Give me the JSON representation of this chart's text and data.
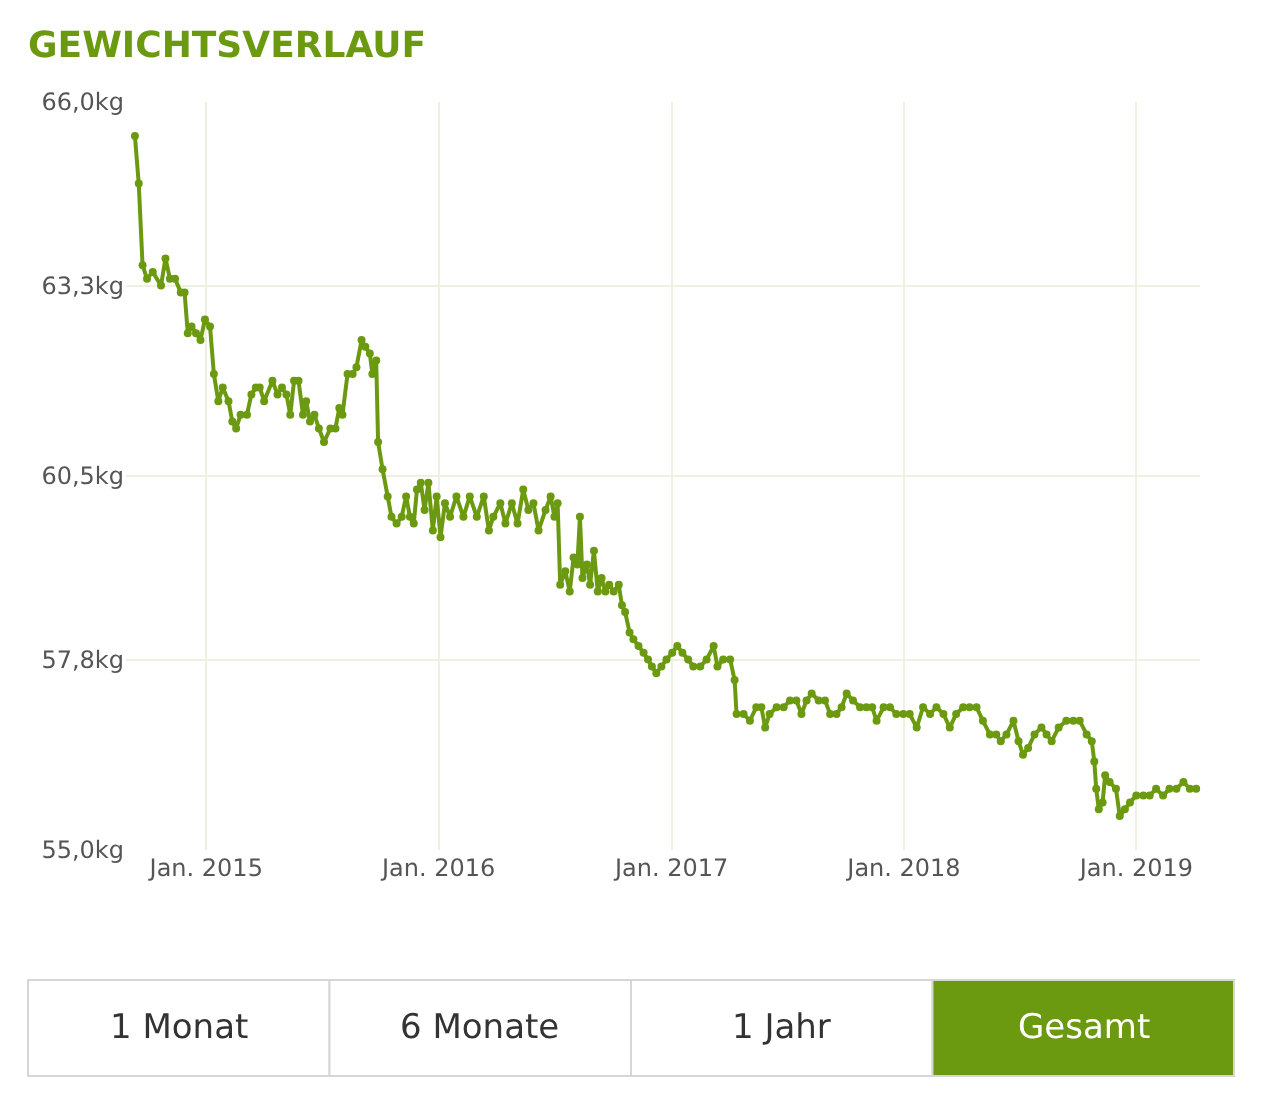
{
  "chart_data": {
    "type": "line",
    "title": "GEWICHTSVERLAUF",
    "x": [
      "2014-09-11",
      "2014-09-17",
      "2014-09-23",
      "2014-09-30",
      "2014-10-09",
      "2014-10-22",
      "2014-10-29",
      "2014-11-05",
      "2014-11-13",
      "2014-11-22",
      "2014-11-28",
      "2014-12-03",
      "2014-12-09",
      "2014-12-16",
      "2014-12-23",
      "2014-12-30",
      "2015-01-07",
      "2015-01-13",
      "2015-01-20",
      "2015-01-27",
      "2015-02-05",
      "2015-02-11",
      "2015-02-17",
      "2015-02-24",
      "2015-03-06",
      "2015-03-13",
      "2015-03-20",
      "2015-03-26",
      "2015-04-02",
      "2015-04-15",
      "2015-04-23",
      "2015-04-30",
      "2015-05-07",
      "2015-05-13",
      "2015-05-19",
      "2015-05-26",
      "2015-06-02",
      "2015-06-07",
      "2015-06-13",
      "2015-06-20",
      "2015-06-27",
      "2015-07-05",
      "2015-07-15",
      "2015-07-23",
      "2015-07-29",
      "2015-08-03",
      "2015-08-11",
      "2015-08-19",
      "2015-08-25",
      "2015-09-02",
      "2015-09-08",
      "2015-09-15",
      "2015-09-19",
      "2015-09-25",
      "2015-09-28",
      "2015-10-05",
      "2015-10-13",
      "2015-10-19",
      "2015-10-27",
      "2015-11-04",
      "2015-11-11",
      "2015-11-17",
      "2015-11-23",
      "2015-11-28",
      "2015-12-04",
      "2015-12-10",
      "2015-12-16",
      "2015-12-23",
      "2015-12-29",
      "2016-01-04",
      "2016-01-11",
      "2016-01-19",
      "2016-01-29",
      "2016-02-09",
      "2016-02-19",
      "2016-03-01",
      "2016-03-12",
      "2016-03-20",
      "2016-03-27",
      "2016-04-07",
      "2016-04-15",
      "2016-04-25",
      "2016-05-04",
      "2016-05-13",
      "2016-05-21",
      "2016-05-29",
      "2016-06-06",
      "2016-06-17",
      "2016-06-25",
      "2016-07-01",
      "2016-07-06",
      "2016-07-10",
      "2016-07-18",
      "2016-07-25",
      "2016-07-31",
      "2016-08-06",
      "2016-08-10",
      "2016-08-14",
      "2016-08-21",
      "2016-08-26",
      "2016-09-01",
      "2016-09-07",
      "2016-09-13",
      "2016-09-19",
      "2016-09-25",
      "2016-10-02",
      "2016-10-10",
      "2016-10-15",
      "2016-10-20",
      "2016-10-27",
      "2016-11-02",
      "2016-11-10",
      "2016-11-18",
      "2016-11-25",
      "2016-12-01",
      "2016-12-08",
      "2016-12-16",
      "2016-12-24",
      "2017-01-02",
      "2017-01-10",
      "2017-01-18",
      "2017-01-27",
      "2017-02-04",
      "2017-02-15",
      "2017-02-25",
      "2017-03-08",
      "2017-03-14",
      "2017-03-23",
      "2017-04-03",
      "2017-04-10",
      "2017-04-13",
      "2017-04-24",
      "2017-05-04",
      "2017-05-14",
      "2017-05-22",
      "2017-05-28",
      "2017-06-04",
      "2017-06-15",
      "2017-06-26",
      "2017-07-06",
      "2017-07-16",
      "2017-07-24",
      "2017-08-01",
      "2017-08-09",
      "2017-08-20",
      "2017-08-30",
      "2017-09-07",
      "2017-09-17",
      "2017-09-25",
      "2017-10-03",
      "2017-10-13",
      "2017-10-24",
      "2017-11-03",
      "2017-11-12",
      "2017-11-19",
      "2017-11-30",
      "2017-12-10",
      "2017-12-20",
      "2017-12-31",
      "2018-01-10",
      "2018-01-21",
      "2018-01-31",
      "2018-02-11",
      "2018-02-21",
      "2018-03-04",
      "2018-03-14",
      "2018-03-24",
      "2018-04-04",
      "2018-04-14",
      "2018-04-25",
      "2018-05-05",
      "2018-05-16",
      "2018-05-26",
      "2018-06-02",
      "2018-06-11",
      "2018-06-22",
      "2018-06-30",
      "2018-07-07",
      "2018-07-15",
      "2018-07-25",
      "2018-08-05",
      "2018-08-13",
      "2018-08-21",
      "2018-09-01",
      "2018-09-13",
      "2018-09-24",
      "2018-10-04",
      "2018-10-15",
      "2018-10-23",
      "2018-10-27",
      "2018-10-30",
      "2018-11-03",
      "2018-11-09",
      "2018-11-13",
      "2018-11-20",
      "2018-11-30",
      "2018-12-06",
      "2018-12-14",
      "2018-12-22",
      "2019-01-01",
      "2019-01-12",
      "2019-01-22",
      "2019-02-01",
      "2019-02-12",
      "2019-02-22",
      "2019-03-05",
      "2019-03-16",
      "2019-03-26",
      "2019-04-05"
    ],
    "series": [
      {
        "color": "#6b9a10",
        "values": [
          65.5,
          64.8,
          63.6,
          63.4,
          63.5,
          63.3,
          63.7,
          63.4,
          63.4,
          63.2,
          63.2,
          62.6,
          62.7,
          62.6,
          62.5,
          62.8,
          62.7,
          62.0,
          61.6,
          61.8,
          61.6,
          61.3,
          61.2,
          61.4,
          61.4,
          61.7,
          61.8,
          61.8,
          61.6,
          61.9,
          61.7,
          61.8,
          61.7,
          61.4,
          61.9,
          61.9,
          61.4,
          61.6,
          61.3,
          61.4,
          61.2,
          61.0,
          61.2,
          61.2,
          61.5,
          61.4,
          62.0,
          62.0,
          62.1,
          62.5,
          62.4,
          62.3,
          62.0,
          62.2,
          61.0,
          60.6,
          60.2,
          59.9,
          59.8,
          59.9,
          60.2,
          59.9,
          59.8,
          60.3,
          60.4,
          60.0,
          60.4,
          59.7,
          60.2,
          59.6,
          60.1,
          59.9,
          60.2,
          59.9,
          60.2,
          59.9,
          60.2,
          59.7,
          59.9,
          60.1,
          59.8,
          60.1,
          59.8,
          60.3,
          60.0,
          60.1,
          59.7,
          60.0,
          60.2,
          59.9,
          60.1,
          58.9,
          59.1,
          58.8,
          59.3,
          59.2,
          59.9,
          59.0,
          59.2,
          58.9,
          59.4,
          58.8,
          59.0,
          58.8,
          58.9,
          58.8,
          58.9,
          58.6,
          58.5,
          58.2,
          58.1,
          58.0,
          57.9,
          57.8,
          57.7,
          57.6,
          57.7,
          57.8,
          57.9,
          58.0,
          57.9,
          57.8,
          57.7,
          57.7,
          57.8,
          58.0,
          57.7,
          57.8,
          57.8,
          57.5,
          57.0,
          57.0,
          56.9,
          57.1,
          57.1,
          56.8,
          57.0,
          57.1,
          57.1,
          57.2,
          57.2,
          57.0,
          57.2,
          57.3,
          57.2,
          57.2,
          57.0,
          57.0,
          57.1,
          57.3,
          57.2,
          57.1,
          57.1,
          57.1,
          56.9,
          57.1,
          57.1,
          57.0,
          57.0,
          57.0,
          56.8,
          57.1,
          57.0,
          57.1,
          57.0,
          56.8,
          57.0,
          57.1,
          57.1,
          57.1,
          56.9,
          56.7,
          56.7,
          56.6,
          56.7,
          56.9,
          56.6,
          56.4,
          56.5,
          56.7,
          56.8,
          56.7,
          56.6,
          56.8,
          56.9,
          56.9,
          56.9,
          56.7,
          56.6,
          56.3,
          55.9,
          55.6,
          55.7,
          56.1,
          56.0,
          55.9,
          55.5,
          55.6,
          55.7,
          55.8,
          55.8,
          55.8,
          55.9,
          55.8,
          55.9,
          55.9,
          56.0,
          55.9,
          55.9
        ]
      }
    ],
    "xlim": [
      "2014-08-28",
      "2019-04-11"
    ],
    "xticks": [
      {
        "value": "2015-01-01",
        "label": "Jan. 2015"
      },
      {
        "value": "2016-01-01",
        "label": "Jan. 2016"
      },
      {
        "value": "2017-01-01",
        "label": "Jan. 2017"
      },
      {
        "value": "2018-01-01",
        "label": "Jan. 2018"
      },
      {
        "value": "2019-01-01",
        "label": "Jan. 2019"
      }
    ],
    "ylim": [
      55.0,
      66.0
    ],
    "yticks": [
      {
        "value": 55.0,
        "label": "55,0kg"
      },
      {
        "value": 57.8,
        "label": "57,8kg"
      },
      {
        "value": 60.5,
        "label": "60,5kg"
      },
      {
        "value": 63.3,
        "label": "63,3kg"
      },
      {
        "value": 66.0,
        "label": "66,0kg"
      }
    ],
    "grid": true,
    "marker": "circle",
    "line_style": "solid",
    "annotations": [
      "1 Monat",
      "6 Monate",
      "1 Jahr",
      "Gesamt"
    ]
  }
}
